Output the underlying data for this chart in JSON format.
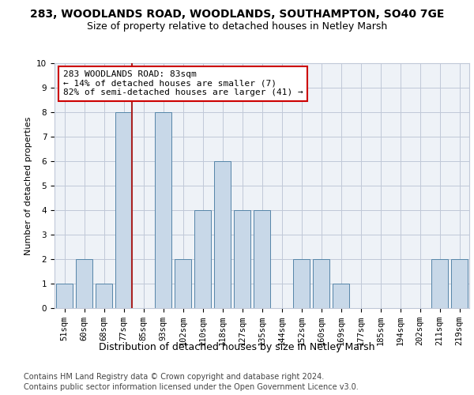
{
  "title1": "283, WOODLANDS ROAD, WOODLANDS, SOUTHAMPTON, SO40 7GE",
  "title2": "Size of property relative to detached houses in Netley Marsh",
  "xlabel": "Distribution of detached houses by size in Netley Marsh",
  "ylabel": "Number of detached properties",
  "categories": [
    "51sqm",
    "60sqm",
    "68sqm",
    "77sqm",
    "85sqm",
    "93sqm",
    "102sqm",
    "110sqm",
    "118sqm",
    "127sqm",
    "135sqm",
    "144sqm",
    "152sqm",
    "160sqm",
    "169sqm",
    "177sqm",
    "185sqm",
    "194sqm",
    "202sqm",
    "211sqm",
    "219sqm"
  ],
  "values": [
    1,
    2,
    1,
    8,
    0,
    8,
    2,
    4,
    6,
    4,
    4,
    0,
    2,
    2,
    1,
    0,
    0,
    0,
    0,
    2,
    2
  ],
  "bar_color": "#c8d8e8",
  "bar_edge_color": "#5585a8",
  "vline_index": 3,
  "annotation_text": "283 WOODLANDS ROAD: 83sqm\n← 14% of detached houses are smaller (7)\n82% of semi-detached houses are larger (41) →",
  "annotation_box_color": "#ffffff",
  "annotation_box_edge": "#cc0000",
  "vline_color": "#aa2222",
  "ylim": [
    0,
    10
  ],
  "yticks": [
    0,
    1,
    2,
    3,
    4,
    5,
    6,
    7,
    8,
    9,
    10
  ],
  "footer1": "Contains HM Land Registry data © Crown copyright and database right 2024.",
  "footer2": "Contains public sector information licensed under the Open Government Licence v3.0.",
  "bg_color": "#eef2f7",
  "grid_color": "#c0c8d8",
  "title1_fontsize": 10,
  "title2_fontsize": 9,
  "xlabel_fontsize": 9,
  "ylabel_fontsize": 8,
  "tick_fontsize": 7.5,
  "annotation_fontsize": 8,
  "footer_fontsize": 7
}
